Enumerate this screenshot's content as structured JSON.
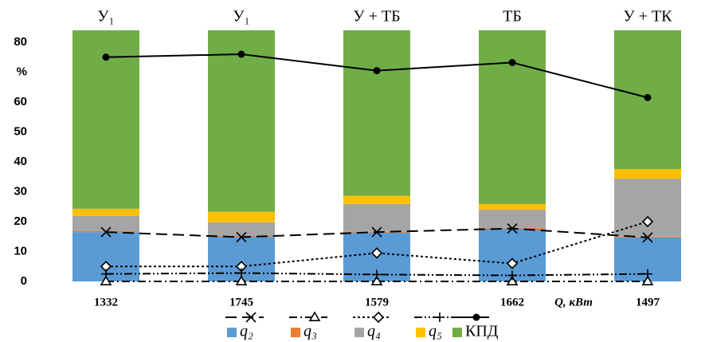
{
  "chart_data": {
    "type": "bar",
    "categories": [
      "1332",
      "1745",
      "1579",
      "1662",
      "1497"
    ],
    "top_labels": [
      "У₁",
      "У₁",
      "У + ТБ",
      "ТБ",
      "У + ТК"
    ],
    "x_label": "Q, кВт",
    "ylim": [
      0,
      84
    ],
    "yticks": [
      0,
      10,
      20,
      30,
      40,
      50,
      60,
      {
        "value": 70,
        "label": "%"
      },
      80
    ],
    "series": [
      {
        "name": "q₂",
        "type": "bar",
        "color": "#5b9bd5",
        "values": [
          16.5,
          14.9,
          16.3,
          17.6,
          14.7
        ]
      },
      {
        "name": "q₃",
        "type": "bar",
        "color": "#ed7d31",
        "values": [
          0.3,
          0.3,
          0.3,
          0.3,
          0.3
        ]
      },
      {
        "name": "q₄",
        "type": "bar",
        "color": "#a5a5a5",
        "values": [
          5.1,
          4.6,
          9.3,
          6.1,
          19.4
        ]
      },
      {
        "name": "q₅",
        "type": "bar",
        "color": "#ffc000",
        "values": [
          2.4,
          3.5,
          2.7,
          1.9,
          3.2
        ]
      },
      {
        "name": "КПД",
        "type": "bar",
        "color": "#70ad47",
        "values": [
          59.7,
          60.7,
          55.4,
          58.1,
          46.4
        ]
      },
      {
        "type": "line",
        "color": "#000000",
        "dash": "14 7",
        "marker": "x",
        "values": [
          16.5,
          14.8,
          16.5,
          17.7,
          14.7
        ]
      },
      {
        "type": "line",
        "color": "#000000",
        "dash": "10 4 2 4",
        "marker": "triangle",
        "values": [
          0,
          0,
          0,
          0,
          0
        ]
      },
      {
        "type": "line",
        "color": "#000000",
        "dash": "3 3",
        "marker": "diamond",
        "values": [
          5,
          5,
          9.5,
          6,
          20
        ]
      },
      {
        "type": "line",
        "color": "#000000",
        "dash": "10 3 2 3 2 3",
        "marker": "plus",
        "values": [
          2.5,
          2.8,
          2.3,
          2,
          2.5
        ]
      },
      {
        "type": "line",
        "color": "#000000",
        "dash": "none",
        "marker": "circle",
        "values": [
          75,
          76,
          70.5,
          73.2,
          61.5
        ]
      }
    ]
  }
}
